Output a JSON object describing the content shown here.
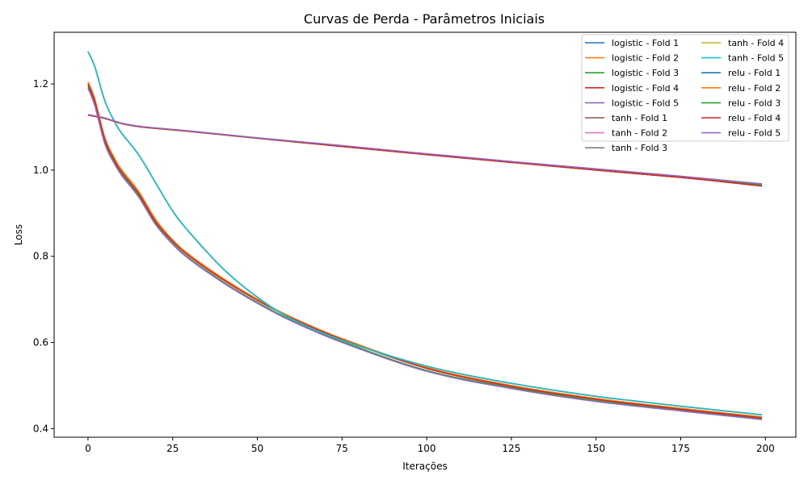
{
  "chart_data": {
    "type": "line",
    "title": "Curvas de Perda - Parâmetros Iniciais",
    "xlabel": "Iterações",
    "ylabel": "Loss",
    "xlim": [
      -10,
      209
    ],
    "ylim": [
      0.38,
      1.32
    ],
    "xticks": [
      0,
      25,
      50,
      75,
      100,
      125,
      150,
      175,
      200
    ],
    "yticks": [
      0.4,
      0.6,
      0.8,
      1.0,
      1.2
    ],
    "xtick_labels": [
      "0",
      "25",
      "50",
      "75",
      "100",
      "125",
      "150",
      "175",
      "200"
    ],
    "ytick_labels": [
      "0.4",
      "0.6",
      "0.8",
      "1.0",
      "1.2"
    ],
    "grid": false,
    "legend_position": "top-right",
    "legend_columns": 2,
    "series": [
      {
        "name": "logistic - Fold 1",
        "color": "#1f77b4",
        "x": [
          0,
          2,
          5,
          8,
          10,
          15,
          20,
          25,
          30,
          40,
          50,
          60,
          75,
          100,
          125,
          150,
          175,
          199
        ],
        "y": [
          1.2,
          1.16,
          1.07,
          1.02,
          0.995,
          0.945,
          0.88,
          0.835,
          0.8,
          0.745,
          0.698,
          0.657,
          0.607,
          0.54,
          0.498,
          0.468,
          0.445,
          0.425
        ]
      },
      {
        "name": "logistic - Fold 2",
        "color": "#ff7f0e",
        "x": [
          0,
          2,
          5,
          8,
          10,
          15,
          20,
          25,
          30,
          40,
          50,
          60,
          75,
          100,
          125,
          150,
          175,
          199
        ],
        "y": [
          1.205,
          1.165,
          1.075,
          1.025,
          1.0,
          0.95,
          0.885,
          0.838,
          0.803,
          0.748,
          0.7,
          0.659,
          0.609,
          0.542,
          0.5,
          0.47,
          0.447,
          0.427
        ]
      },
      {
        "name": "logistic - Fold 3",
        "color": "#2ca02c",
        "x": [
          0,
          2,
          5,
          8,
          10,
          15,
          20,
          25,
          30,
          40,
          50,
          60,
          75,
          100,
          125,
          150,
          175,
          199
        ],
        "y": [
          1.195,
          1.155,
          1.065,
          1.015,
          0.99,
          0.94,
          0.875,
          0.83,
          0.795,
          0.74,
          0.693,
          0.652,
          0.602,
          0.535,
          0.495,
          0.465,
          0.443,
          0.423
        ]
      },
      {
        "name": "logistic - Fold 4",
        "color": "#d62728",
        "x": [
          0,
          2,
          5,
          8,
          10,
          15,
          20,
          25,
          30,
          40,
          50,
          60,
          75,
          100,
          125,
          150,
          175,
          199
        ],
        "y": [
          1.2,
          1.16,
          1.07,
          1.02,
          0.995,
          0.945,
          0.88,
          0.835,
          0.8,
          0.745,
          0.698,
          0.657,
          0.607,
          0.54,
          0.498,
          0.468,
          0.445,
          0.425
        ]
      },
      {
        "name": "logistic - Fold 5",
        "color": "#9467bd",
        "x": [
          0,
          2,
          5,
          8,
          10,
          15,
          20,
          25,
          30,
          40,
          50,
          60,
          75,
          100,
          125,
          150,
          175,
          199
        ],
        "y": [
          1.19,
          1.15,
          1.06,
          1.012,
          0.987,
          0.937,
          0.873,
          0.828,
          0.793,
          0.738,
          0.691,
          0.65,
          0.6,
          0.533,
          0.493,
          0.463,
          0.441,
          0.421
        ]
      },
      {
        "name": "tanh - Fold 1",
        "color": "#8c564b",
        "x": [
          0,
          2,
          5,
          8,
          10,
          15,
          20,
          25,
          30,
          40,
          50,
          60,
          75,
          100,
          125,
          150,
          175,
          199
        ],
        "y": [
          1.275,
          1.24,
          1.16,
          1.11,
          1.085,
          1.035,
          0.97,
          0.905,
          0.855,
          0.77,
          0.705,
          0.655,
          0.605,
          0.545,
          0.505,
          0.475,
          0.452,
          0.432
        ]
      },
      {
        "name": "tanh - Fold 2",
        "color": "#e377c2",
        "x": [
          0,
          2,
          5,
          8,
          10,
          15,
          20,
          25,
          30,
          40,
          50,
          60,
          75,
          100,
          125,
          150,
          175,
          199
        ],
        "y": [
          1.275,
          1.24,
          1.16,
          1.11,
          1.085,
          1.035,
          0.97,
          0.905,
          0.855,
          0.77,
          0.705,
          0.655,
          0.605,
          0.545,
          0.505,
          0.475,
          0.452,
          0.432
        ]
      },
      {
        "name": "tanh - Fold 3",
        "color": "#7f7f7f",
        "x": [
          0,
          2,
          5,
          8,
          10,
          15,
          20,
          25,
          30,
          40,
          50,
          60,
          75,
          100,
          125,
          150,
          175,
          199
        ],
        "y": [
          1.275,
          1.24,
          1.16,
          1.11,
          1.085,
          1.035,
          0.97,
          0.905,
          0.855,
          0.77,
          0.705,
          0.655,
          0.605,
          0.545,
          0.505,
          0.475,
          0.452,
          0.432
        ]
      },
      {
        "name": "tanh - Fold 4",
        "color": "#bcbd22",
        "x": [
          0,
          2,
          5,
          8,
          10,
          15,
          20,
          25,
          30,
          40,
          50,
          60,
          75,
          100,
          125,
          150,
          175,
          199
        ],
        "y": [
          1.275,
          1.24,
          1.16,
          1.11,
          1.085,
          1.035,
          0.97,
          0.905,
          0.855,
          0.77,
          0.705,
          0.655,
          0.605,
          0.545,
          0.505,
          0.475,
          0.452,
          0.432
        ]
      },
      {
        "name": "tanh - Fold 5",
        "color": "#17becf",
        "x": [
          0,
          2,
          5,
          8,
          10,
          15,
          20,
          25,
          30,
          40,
          50,
          60,
          75,
          100,
          125,
          150,
          175,
          199
        ],
        "y": [
          1.275,
          1.24,
          1.16,
          1.11,
          1.085,
          1.035,
          0.97,
          0.905,
          0.855,
          0.77,
          0.705,
          0.655,
          0.605,
          0.545,
          0.505,
          0.475,
          0.452,
          0.432
        ]
      },
      {
        "name": "relu - Fold 1",
        "color": "#1f77b4",
        "x": [
          0,
          5,
          10,
          15,
          20,
          30,
          50,
          75,
          100,
          125,
          150,
          175,
          199
        ],
        "y": [
          1.128,
          1.12,
          1.108,
          1.101,
          1.097,
          1.09,
          1.074,
          1.055,
          1.036,
          1.018,
          1.0,
          0.983,
          0.965
        ]
      },
      {
        "name": "relu - Fold 2",
        "color": "#ff7f0e",
        "x": [
          0,
          5,
          10,
          15,
          20,
          30,
          50,
          75,
          100,
          125,
          150,
          175,
          199
        ],
        "y": [
          1.128,
          1.12,
          1.108,
          1.101,
          1.097,
          1.09,
          1.074,
          1.055,
          1.036,
          1.018,
          1.0,
          0.983,
          0.965
        ]
      },
      {
        "name": "relu - Fold 3",
        "color": "#2ca02c",
        "x": [
          0,
          5,
          10,
          15,
          20,
          30,
          50,
          75,
          100,
          125,
          150,
          175,
          199
        ],
        "y": [
          1.128,
          1.12,
          1.108,
          1.101,
          1.097,
          1.09,
          1.074,
          1.055,
          1.036,
          1.018,
          1.0,
          0.983,
          0.965
        ]
      },
      {
        "name": "relu - Fold 4",
        "color": "#d62728",
        "x": [
          0,
          5,
          10,
          15,
          20,
          30,
          50,
          75,
          100,
          125,
          150,
          175,
          199
        ],
        "y": [
          1.128,
          1.12,
          1.108,
          1.101,
          1.097,
          1.09,
          1.074,
          1.055,
          1.036,
          1.018,
          1.0,
          0.983,
          0.963
        ]
      },
      {
        "name": "relu - Fold 5",
        "color": "#9467bd",
        "x": [
          0,
          5,
          10,
          15,
          20,
          30,
          50,
          75,
          100,
          125,
          150,
          175,
          199
        ],
        "y": [
          1.129,
          1.121,
          1.109,
          1.102,
          1.098,
          1.091,
          1.075,
          1.057,
          1.038,
          1.02,
          1.003,
          0.986,
          0.968
        ]
      }
    ]
  }
}
